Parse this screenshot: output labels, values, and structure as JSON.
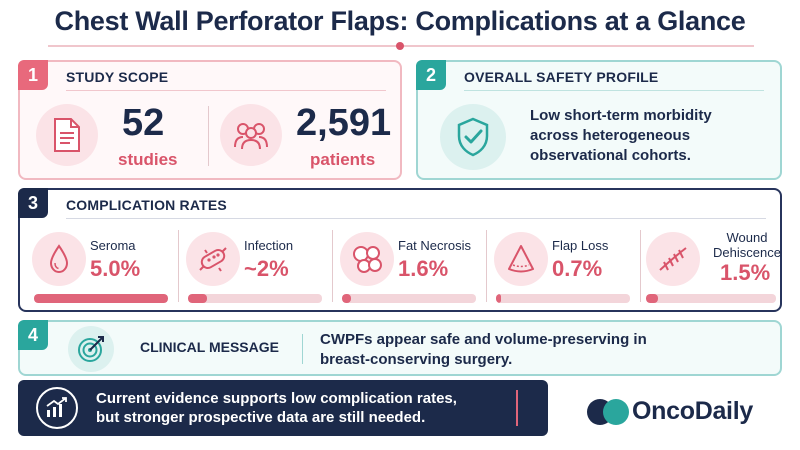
{
  "title": "Chest Wall Perforator Flaps: Complications at a Glance",
  "colors": {
    "navy": "#1c2a4a",
    "pink": "#e8697c",
    "teal": "#2aa69d",
    "accent_red": "#d9546a"
  },
  "scope": {
    "number": "1",
    "title": "STUDY SCOPE",
    "studies_count": "52",
    "studies_label": "studies",
    "studies_icon": "document-icon",
    "patients_count": "2,591",
    "patients_label": "patients",
    "patients_icon": "people-icon"
  },
  "safety": {
    "number": "2",
    "title": "OVERALL SAFETY PROFILE",
    "icon": "shield-check-icon",
    "text": "Low short-term morbidity across heterogeneous observational cohorts."
  },
  "complications": {
    "number": "3",
    "title": "COMPLICATION RATES",
    "items": [
      {
        "label": "Seroma",
        "value": "5.0%",
        "fill": 1.0,
        "icon": "droplet-icon"
      },
      {
        "label": "Infection",
        "value": "~2%",
        "fill": 0.14,
        "icon": "bacteria-icon"
      },
      {
        "label": "Fat Necrosis",
        "value": "1.6%",
        "fill": 0.07,
        "icon": "fat-cells-icon"
      },
      {
        "label": "Flap Loss",
        "value": "0.7%",
        "fill": 0.04,
        "icon": "flap-icon"
      },
      {
        "label": "Wound Dehiscence",
        "value": "1.5%",
        "fill": 0.09,
        "icon": "suture-icon"
      }
    ]
  },
  "clinical": {
    "number": "4",
    "title": "CLINICAL MESSAGE",
    "icon": "target-icon",
    "text": "CWPFs appear safe and volume-preserving in breast-conserving surgery."
  },
  "banner": {
    "icon": "trend-chart-icon",
    "text": "Current evidence supports low complication rates, but stronger prospective data are still needed."
  },
  "logo": {
    "text": "OncoDaily",
    "icon": "oncodaily-logo-icon"
  }
}
